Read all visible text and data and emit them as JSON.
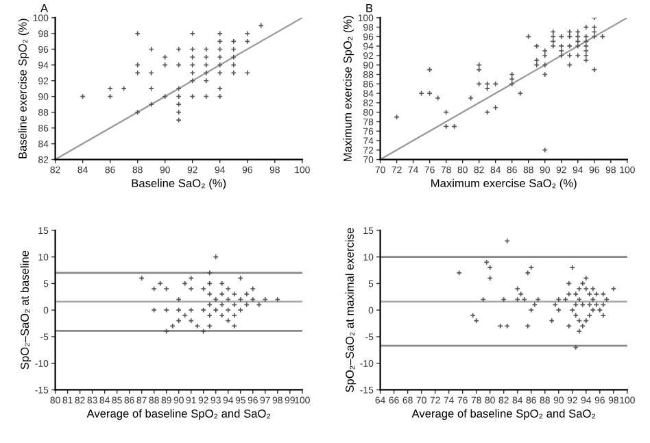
{
  "chart_data": [
    {
      "type": "scatter",
      "title": "A",
      "xlabel": "Baseline SaO₂ (%)",
      "ylabel": "Baseline exercise SpO₂ (%)",
      "grid": false,
      "legend": false,
      "xlim": [
        82,
        100
      ],
      "xticks": [
        82,
        84,
        86,
        88,
        90,
        92,
        94,
        96,
        98,
        100
      ],
      "ylim": [
        82,
        100
      ],
      "yticks": [
        82,
        84,
        86,
        88,
        90,
        92,
        94,
        96,
        98,
        100
      ],
      "series": [
        {
          "marker": "cross",
          "color": "#555555",
          "x": [
            84,
            86,
            86,
            87,
            88,
            88,
            88,
            88,
            89,
            89,
            89,
            89,
            90,
            90,
            90,
            91,
            91,
            91,
            91,
            91,
            91,
            91,
            92,
            92,
            92,
            92,
            92,
            92,
            92,
            93,
            93,
            93,
            93,
            93,
            93,
            94,
            94,
            94,
            94,
            94,
            94,
            94,
            94,
            95,
            95,
            95,
            95,
            95,
            96,
            96,
            96,
            97
          ],
          "values": [
            90,
            90,
            91,
            91,
            88,
            93,
            94,
            98,
            89,
            91,
            93,
            96,
            90,
            94,
            95,
            87,
            88,
            89,
            90,
            91,
            94,
            96,
            90,
            92,
            93,
            94,
            95,
            96,
            98,
            90,
            92,
            93,
            94,
            95,
            96,
            90,
            91,
            93,
            94,
            95,
            96,
            97,
            98,
            93,
            94,
            95,
            96,
            97,
            93,
            97,
            98,
            99
          ]
        },
        {
          "type": "line",
          "marker": "none",
          "color": "#999999",
          "x": [
            82,
            100
          ],
          "values": [
            82,
            100
          ]
        }
      ]
    },
    {
      "type": "scatter",
      "title": "B",
      "xlabel": "Maximum exercise SaO₂ (%)",
      "ylabel": "Maximum exercise SpO₂ (%)",
      "grid": false,
      "legend": false,
      "xlim": [
        70,
        100
      ],
      "xticks": [
        70,
        72,
        74,
        76,
        78,
        80,
        82,
        84,
        86,
        88,
        90,
        92,
        94,
        96,
        98,
        100
      ],
      "ylim": [
        70,
        100
      ],
      "yticks": [
        70,
        72,
        74,
        76,
        78,
        80,
        82,
        84,
        86,
        88,
        90,
        92,
        94,
        96,
        98,
        100
      ],
      "series": [
        {
          "marker": "cross",
          "color": "#555555",
          "x": [
            72,
            75,
            76,
            76,
            77,
            78,
            78,
            79,
            81,
            82,
            82,
            82,
            83,
            83,
            83,
            84,
            84,
            86,
            86,
            86,
            87,
            88,
            89,
            89,
            89,
            90,
            90,
            90,
            90,
            90,
            91,
            91,
            91,
            91,
            92,
            92,
            92,
            92,
            93,
            93,
            93,
            93,
            93,
            94,
            94,
            94,
            94,
            94,
            95,
            95,
            95,
            95,
            95,
            95,
            95,
            96,
            96,
            96,
            96,
            96,
            97
          ],
          "values": [
            79,
            84,
            84,
            89,
            83,
            77,
            80,
            77,
            83,
            86,
            89,
            90,
            80,
            85,
            86,
            81,
            86,
            86,
            87,
            88,
            84,
            96,
            90,
            91,
            94,
            72,
            88,
            90,
            92,
            93,
            94,
            95,
            96,
            97,
            92,
            93,
            94,
            96,
            90,
            92,
            94,
            96,
            97,
            92,
            94,
            95,
            96,
            97,
            91,
            92,
            93,
            94,
            95,
            96,
            98,
            89,
            96,
            97,
            98,
            100,
            96
          ]
        },
        {
          "type": "line",
          "marker": "none",
          "color": "#999999",
          "x": [
            70,
            100
          ],
          "values": [
            70,
            100
          ]
        }
      ]
    },
    {
      "type": "scatter",
      "xlabel": "Average of baseline SpO₂ and SaO₂",
      "ylabel": "SpO₂–SaO₂ at baseline",
      "marker": "cross",
      "grid": false,
      "legend": false,
      "xlim": [
        80,
        100
      ],
      "xticks": [
        80,
        81,
        82,
        83,
        84,
        85,
        86,
        87,
        88,
        89,
        90,
        91,
        92,
        93,
        94,
        95,
        96,
        97,
        98,
        99,
        100
      ],
      "ylim": [
        -15,
        15
      ],
      "yticks": [
        -15,
        -10,
        -5,
        0,
        5,
        10,
        15
      ],
      "ref_lines": [
        {
          "axis": "y",
          "value": 7,
          "color": "#888888"
        },
        {
          "axis": "y",
          "value": 1.6,
          "color": "#aaaaaa"
        },
        {
          "axis": "y",
          "value": -3.9,
          "color": "#888888"
        }
      ],
      "series": [
        {
          "color": "#555555",
          "x": [
            87,
            88,
            88,
            88.5,
            89,
            89,
            89,
            89.5,
            90,
            90,
            90,
            90.5,
            90.5,
            91,
            91,
            91,
            91,
            91.5,
            92,
            92,
            92,
            92.5,
            92.5,
            92.5,
            92.5,
            92.5,
            92.5,
            93,
            93,
            93,
            93.5,
            93.5,
            93.5,
            93.5,
            94,
            94,
            94,
            94,
            94.5,
            94.5,
            94.5,
            94.5,
            95,
            95,
            95,
            95.5,
            95.5,
            96,
            96,
            96.5,
            97,
            98
          ],
          "values": [
            6,
            4,
            0,
            5,
            4,
            0,
            -4,
            -3,
            2,
            0,
            -2,
            5,
            -1,
            6,
            4,
            0,
            -2,
            -3,
            4,
            0,
            -4,
            7,
            5,
            3,
            1,
            -1,
            -3,
            10,
            2,
            0,
            5,
            3,
            1,
            -1,
            4,
            2,
            0,
            -2,
            3,
            1,
            -1,
            -3,
            6,
            2,
            0,
            3,
            1,
            4,
            2,
            1,
            2,
            2
          ]
        }
      ]
    },
    {
      "type": "scatter",
      "xlabel": "Average of baseline SpO₂ and SaO₂",
      "ylabel": "SpO₂–SaO₂ at maximal exercise",
      "marker": "cross",
      "grid": false,
      "legend": false,
      "xlim": [
        64,
        100
      ],
      "xticks": [
        64,
        66,
        68,
        70,
        72,
        74,
        76,
        78,
        80,
        82,
        84,
        86,
        88,
        90,
        92,
        94,
        96,
        98,
        100
      ],
      "ylim": [
        -15,
        15
      ],
      "yticks": [
        -15,
        -10,
        -5,
        0,
        5,
        10,
        15
      ],
      "ref_lines": [
        {
          "axis": "y",
          "value": 10,
          "color": "#888888"
        },
        {
          "axis": "y",
          "value": 1.6,
          "color": "#aaaaaa"
        },
        {
          "axis": "y",
          "value": -6.7,
          "color": "#888888"
        }
      ],
      "series": [
        {
          "color": "#555555",
          "x": [
            75.5,
            77.5,
            78,
            79,
            79.5,
            80,
            80,
            81.5,
            82,
            82.5,
            82.5,
            84,
            84,
            84.5,
            85,
            85.5,
            85.5,
            86,
            86,
            86.5,
            87,
            89,
            89.5,
            90,
            90,
            91,
            91.5,
            91.5,
            91.5,
            92,
            92,
            92.5,
            92.5,
            92.5,
            92.5,
            93,
            93,
            93,
            93,
            93.5,
            93.5,
            93.5,
            94,
            94,
            94,
            94.5,
            94.5,
            94.5,
            95,
            95,
            95,
            95.5,
            95.5,
            96,
            96.5,
            96.5,
            96.5,
            97,
            98
          ],
          "values": [
            7,
            -1,
            -2,
            2,
            9,
            8,
            6,
            -3,
            2,
            13,
            -3,
            4,
            2,
            3,
            2,
            7,
            -3,
            8,
            0,
            1,
            2,
            -2,
            1,
            2,
            0,
            2,
            5,
            3,
            -3,
            8,
            0,
            3,
            1,
            -1,
            -7,
            4,
            2,
            -2,
            -4,
            5,
            1,
            -3,
            6,
            4,
            -2,
            3,
            1,
            -1,
            4,
            2,
            0,
            3,
            1,
            0,
            3,
            1,
            -1,
            2,
            4
          ]
        }
      ]
    }
  ]
}
